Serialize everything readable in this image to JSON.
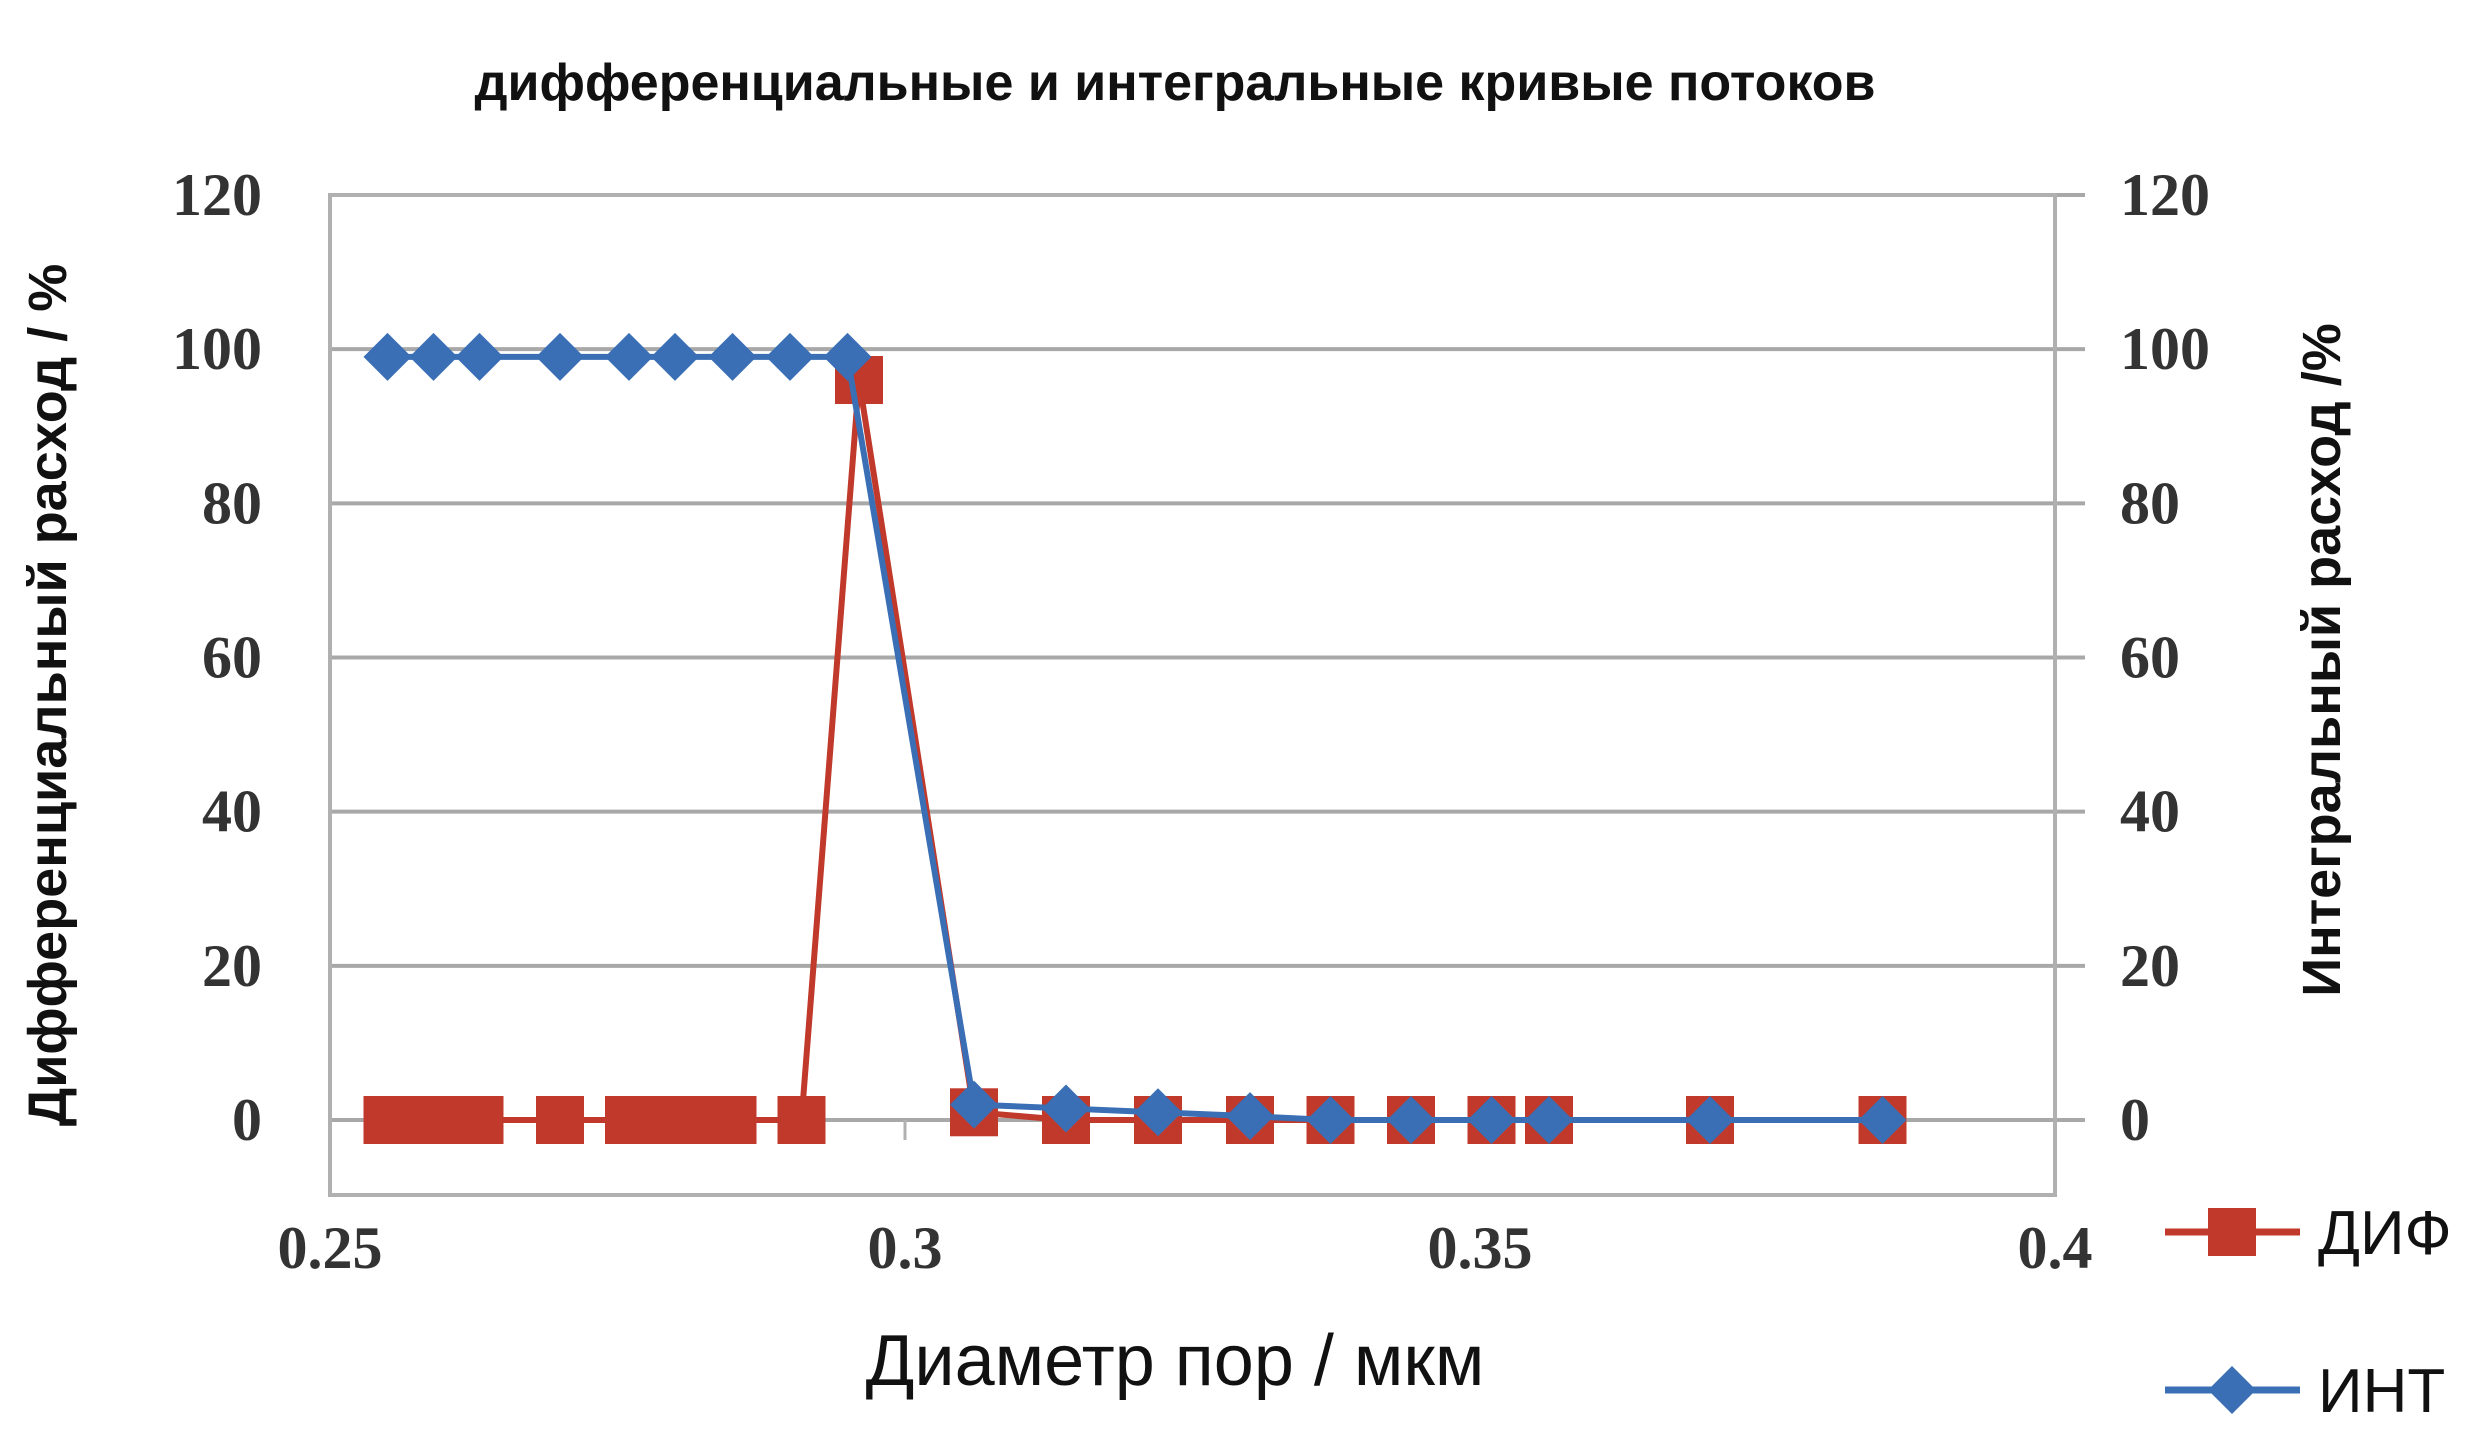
{
  "chart_data": {
    "type": "line",
    "title": "дифференциальные и интегральные кривые потоков",
    "xlabel": "Диаметр пор / мкм",
    "ylabel_left": "Дифференциальный расход / %",
    "ylabel_right": "Интегральный расход /%",
    "xlim": [
      0.25,
      0.4
    ],
    "ylim": [
      0,
      120
    ],
    "x_ticks": [
      "0.25",
      "0.3",
      "0.35",
      "0.4"
    ],
    "y_ticks": [
      "0",
      "20",
      "40",
      "60",
      "80",
      "100",
      "120"
    ],
    "grid": "horizontal",
    "legend_position": "bottom-right",
    "series": [
      {
        "name": "ДИФ",
        "color": "#c0392b",
        "marker": "square",
        "x": [
          0.255,
          0.257,
          0.259,
          0.261,
          0.263,
          0.27,
          0.276,
          0.279,
          0.282,
          0.285,
          0.291,
          0.296,
          0.306,
          0.314,
          0.322,
          0.33,
          0.337,
          0.344,
          0.351,
          0.356,
          0.37,
          0.385
        ],
        "values": [
          0,
          0,
          0,
          0,
          0,
          0,
          0,
          0,
          0,
          0,
          0,
          96,
          1,
          0,
          0,
          0,
          0,
          0,
          0,
          0,
          0,
          0
        ]
      },
      {
        "name": "ИНТ",
        "color": "#3a6fb5",
        "marker": "diamond",
        "x": [
          0.255,
          0.259,
          0.263,
          0.27,
          0.276,
          0.28,
          0.285,
          0.29,
          0.295,
          0.306,
          0.314,
          0.322,
          0.33,
          0.337,
          0.344,
          0.351,
          0.356,
          0.37,
          0.385
        ],
        "values": [
          99,
          99,
          99,
          99,
          99,
          99,
          99,
          99,
          99,
          2,
          1.5,
          1,
          0.5,
          0,
          0,
          0,
          0,
          0,
          0
        ]
      }
    ]
  }
}
